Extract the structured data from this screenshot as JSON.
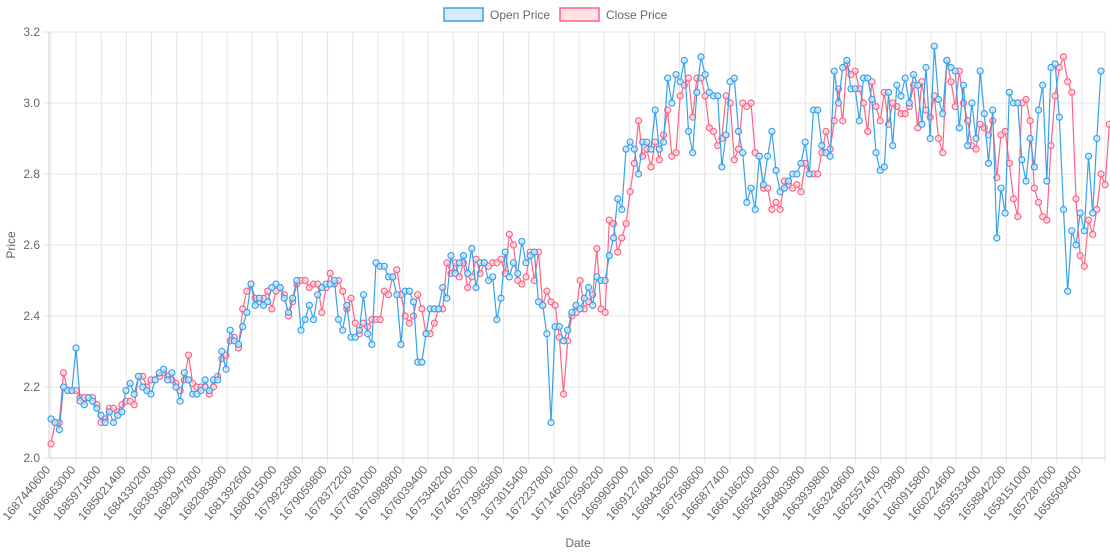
{
  "chart_data": {
    "type": "line",
    "xlabel": "Date",
    "ylabel": "Price",
    "ylim": [
      2.0,
      3.2
    ],
    "yticks": [
      "2.0",
      "2.2",
      "2.4",
      "2.6",
      "2.8",
      "3.0",
      "3.2"
    ],
    "grid": true,
    "legend_position": "top-center",
    "x_tick_labels": [
      "1687440600",
      "1686663000",
      "1685971800",
      "1685021400",
      "1684330200",
      "1683639000",
      "1682947800",
      "1682083800",
      "1681392600",
      "1680615000",
      "1679923800",
      "1679059800",
      "1678372200",
      "1677681000",
      "1676989800",
      "1676039400",
      "1675348200",
      "1674657000",
      "1673965800",
      "1673015400",
      "1672237800",
      "1671460200",
      "1670596200",
      "1669905000",
      "1669127400",
      "1668436200",
      "1667568600",
      "1666877400",
      "1666186200",
      "1665495000",
      "1664803800",
      "1663939800",
      "1663248600",
      "1662557400",
      "1661779800",
      "1660915800",
      "1660224600",
      "1659533400",
      "1658842200",
      "1658151000",
      "1657287000",
      "1656509400"
    ],
    "series": [
      {
        "name": "Open Price",
        "color": "#36a2eb",
        "fill": "#d7ecfb",
        "values": [
          2.11,
          2.1,
          2.08,
          2.2,
          2.19,
          2.19,
          2.31,
          2.16,
          2.15,
          2.17,
          2.16,
          2.14,
          2.12,
          2.1,
          2.13,
          2.1,
          2.12,
          2.13,
          2.19,
          2.21,
          2.18,
          2.23,
          2.2,
          2.19,
          2.18,
          2.22,
          2.24,
          2.25,
          2.22,
          2.24,
          2.2,
          2.16,
          2.24,
          2.22,
          2.18,
          2.18,
          2.19,
          2.22,
          2.19,
          2.22,
          2.22,
          2.3,
          2.25,
          2.36,
          2.33,
          2.32,
          2.37,
          2.41,
          2.49,
          2.43,
          2.45,
          2.43,
          2.44,
          2.48,
          2.49,
          2.48,
          2.45,
          2.41,
          2.45,
          2.5,
          2.36,
          2.39,
          2.43,
          2.39,
          2.46,
          2.48,
          2.49,
          2.49,
          2.5,
          2.39,
          2.36,
          2.43,
          2.34,
          2.34,
          2.36,
          2.46,
          2.35,
          2.32,
          2.55,
          2.54,
          2.54,
          2.51,
          2.51,
          2.46,
          2.32,
          2.47,
          2.47,
          2.44,
          2.27,
          2.27,
          2.35,
          2.42,
          2.42,
          2.42,
          2.48,
          2.45,
          2.57,
          2.52,
          2.55,
          2.57,
          2.52,
          2.59,
          2.48,
          2.55,
          2.55,
          2.5,
          2.51,
          2.39,
          2.45,
          2.58,
          2.51,
          2.55,
          2.52,
          2.61,
          2.55,
          2.57,
          2.58,
          2.44,
          2.43,
          2.35,
          2.1,
          2.37,
          2.37,
          2.33,
          2.36,
          2.41,
          2.43,
          2.42,
          2.45,
          2.48,
          2.43,
          2.51,
          2.5,
          2.5,
          2.57,
          2.62,
          2.73,
          2.7,
          2.87,
          2.89,
          2.87,
          2.8,
          2.89,
          2.89,
          2.87,
          2.98,
          2.87,
          2.89,
          3.07,
          3.0,
          3.08,
          3.06,
          3.12,
          2.92,
          2.86,
          3.03,
          3.13,
          3.08,
          3.03,
          3.02,
          3.02,
          2.82,
          2.91,
          3.06,
          3.07,
          2.92,
          2.86,
          2.72,
          2.76,
          2.7,
          2.85,
          2.77,
          2.85,
          2.92,
          2.81,
          2.75,
          2.76,
          2.78,
          2.8,
          2.8,
          2.83,
          2.89,
          2.8,
          2.98,
          2.98,
          2.88,
          2.86,
          2.85,
          3.09,
          3.0,
          3.1,
          3.12,
          3.04,
          3.04,
          2.95,
          3.07,
          3.07,
          3.01,
          2.86,
          2.81,
          2.82,
          3.03,
          2.88,
          3.05,
          3.02,
          3.07,
          3.0,
          3.08,
          3.05,
          2.94,
          3.1,
          2.9,
          3.16,
          3.01,
          2.97,
          3.12,
          3.1,
          3.09,
          2.93,
          3.05,
          2.88,
          3.0,
          2.9,
          3.09,
          2.97,
          2.83,
          2.98,
          2.62,
          2.76,
          2.69,
          3.03,
          3.0,
          3.0,
          2.84,
          2.78,
          2.9,
          2.82,
          2.98,
          3.05,
          2.78,
          3.1,
          3.11,
          2.96,
          2.7,
          2.47,
          2.64,
          2.6,
          2.69,
          2.64,
          2.85,
          2.69,
          2.9,
          3.09
        ]
      },
      {
        "name": "Close Price",
        "color": "#ff6384",
        "fill": "#ffe0e6",
        "values": [
          2.04,
          2.1,
          2.1,
          2.24,
          2.19,
          2.19,
          2.19,
          2.17,
          2.17,
          2.17,
          2.17,
          2.15,
          2.1,
          2.11,
          2.14,
          2.14,
          2.13,
          2.15,
          2.16,
          2.16,
          2.15,
          2.23,
          2.23,
          2.2,
          2.22,
          2.22,
          2.23,
          2.24,
          2.23,
          2.22,
          2.21,
          2.19,
          2.22,
          2.29,
          2.21,
          2.2,
          2.2,
          2.2,
          2.18,
          2.2,
          2.23,
          2.28,
          2.29,
          2.33,
          2.34,
          2.31,
          2.42,
          2.47,
          2.49,
          2.45,
          2.44,
          2.45,
          2.47,
          2.42,
          2.47,
          2.48,
          2.46,
          2.4,
          2.44,
          2.49,
          2.5,
          2.5,
          2.48,
          2.49,
          2.49,
          2.41,
          2.48,
          2.52,
          2.49,
          2.5,
          2.47,
          2.42,
          2.45,
          2.38,
          2.35,
          2.38,
          2.37,
          2.39,
          2.39,
          2.39,
          2.47,
          2.46,
          2.51,
          2.53,
          2.46,
          2.4,
          2.38,
          2.4,
          2.46,
          2.42,
          2.35,
          2.35,
          2.38,
          2.42,
          2.42,
          2.55,
          2.52,
          2.55,
          2.51,
          2.55,
          2.48,
          2.51,
          2.56,
          2.52,
          2.55,
          2.54,
          2.55,
          2.55,
          2.56,
          2.52,
          2.63,
          2.6,
          2.5,
          2.49,
          2.51,
          2.58,
          2.5,
          2.58,
          2.43,
          2.47,
          2.44,
          2.43,
          2.34,
          2.18,
          2.33,
          2.4,
          2.41,
          2.5,
          2.42,
          2.44,
          2.46,
          2.59,
          2.42,
          2.41,
          2.67,
          2.66,
          2.58,
          2.62,
          2.66,
          2.75,
          2.83,
          2.95,
          2.85,
          2.87,
          2.82,
          2.89,
          2.84,
          2.91,
          2.98,
          2.85,
          2.86,
          3.02,
          3.05,
          3.07,
          2.96,
          3.07,
          3.07,
          3.02,
          2.93,
          2.92,
          2.88,
          2.9,
          3.02,
          3.0,
          2.84,
          2.87,
          3.0,
          2.99,
          3.0,
          2.86,
          2.85,
          2.76,
          2.76,
          2.7,
          2.72,
          2.7,
          2.78,
          2.77,
          2.76,
          2.77,
          2.75,
          2.83,
          2.8,
          2.8,
          2.8,
          2.86,
          2.92,
          2.87,
          2.95,
          3.04,
          2.95,
          3.11,
          3.08,
          3.09,
          3.04,
          3.0,
          2.92,
          3.06,
          2.99,
          2.95,
          3.03,
          2.94,
          3.0,
          2.99,
          2.97,
          2.97,
          2.99,
          3.05,
          2.93,
          3.06,
          2.98,
          2.96,
          3.02,
          2.9,
          2.86,
          3.12,
          3.06,
          2.99,
          3.09,
          3.0,
          2.95,
          2.88,
          2.87,
          2.94,
          2.93,
          2.91,
          2.95,
          2.79,
          2.91,
          2.92,
          2.83,
          2.73,
          2.68,
          3.0,
          3.01,
          2.95,
          2.76,
          2.72,
          2.68,
          2.67,
          2.88,
          3.02,
          3.1,
          3.13,
          3.06,
          3.03,
          2.73,
          2.57,
          2.54,
          2.67,
          2.63,
          2.7,
          2.8,
          2.77,
          2.94
        ]
      }
    ]
  }
}
